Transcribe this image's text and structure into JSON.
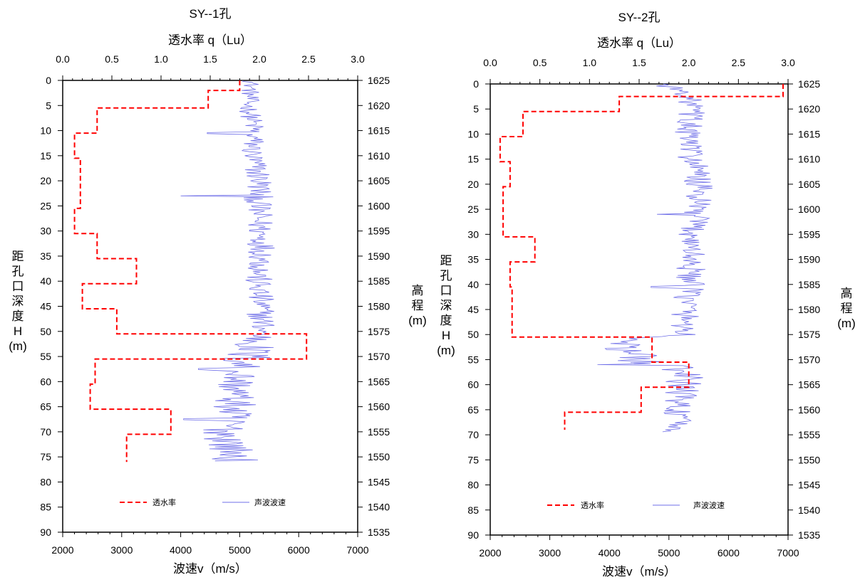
{
  "chart_data": [
    {
      "type": "line",
      "title": "SY--1孔",
      "top_axis_label": "透水率 q（Lu）",
      "bottom_axis_label": "波速v（m/s）",
      "left_axis_label": [
        "距",
        "孔",
        "口",
        "深",
        "度",
        "H",
        "(m)"
      ],
      "right_axis_label": [
        "高",
        "程",
        "(m)"
      ],
      "top_ticks": [
        "0.0",
        "0.5",
        "1.0",
        "1.5",
        "2.0",
        "2.5",
        "3.0"
      ],
      "bottom_ticks": [
        "2000",
        "3000",
        "4000",
        "5000",
        "6000",
        "7000"
      ],
      "left_ticks": [
        "0",
        "5",
        "10",
        "15",
        "20",
        "25",
        "30",
        "35",
        "40",
        "45",
        "50",
        "55",
        "60",
        "65",
        "70",
        "75",
        "80",
        "85",
        "90"
      ],
      "right_ticks": [
        "1625",
        "1620",
        "1615",
        "1610",
        "1605",
        "1600",
        "1595",
        "1590",
        "1585",
        "1580",
        "1575",
        "1570",
        "1565",
        "1560",
        "1555",
        "1550",
        "1545",
        "1540",
        "1535"
      ],
      "depth_range": [
        0,
        90
      ],
      "q_range": [
        0,
        3
      ],
      "v_range": [
        2000,
        7000
      ],
      "legend": [
        "透水率",
        "声波波速"
      ],
      "colors": {
        "permeability": "#ff0000",
        "velocity": "#6f6fe8"
      },
      "series": [
        {
          "name": "透水率",
          "points": [
            [
              1.8,
              0
            ],
            [
              1.8,
              2
            ],
            [
              1.48,
              2
            ],
            [
              1.48,
              5.5
            ],
            [
              0.35,
              5.5
            ],
            [
              0.35,
              10.5
            ],
            [
              0.12,
              10.5
            ],
            [
              0.12,
              15.5
            ],
            [
              0.18,
              15.5
            ],
            [
              0.18,
              25.5
            ],
            [
              0.12,
              25.5
            ],
            [
              0.12,
              30.5
            ],
            [
              0.35,
              30.5
            ],
            [
              0.35,
              35.5
            ],
            [
              0.75,
              35.5
            ],
            [
              0.75,
              40.5
            ],
            [
              0.2,
              40.5
            ],
            [
              0.2,
              45.5
            ],
            [
              0.55,
              45.5
            ],
            [
              0.55,
              50.5
            ],
            [
              2.48,
              50.5
            ],
            [
              2.48,
              55.5
            ],
            [
              0.33,
              55.5
            ],
            [
              0.33,
              60.5
            ],
            [
              0.28,
              60.5
            ],
            [
              0.28,
              65.5
            ],
            [
              1.1,
              65.5
            ],
            [
              1.1,
              70.5
            ],
            [
              0.65,
              70.5
            ],
            [
              0.65,
              76
            ]
          ]
        },
        {
          "name": "声波波速",
          "v_mean": [
            [
              0,
              5200
            ],
            [
              5,
              5150
            ],
            [
              10,
              5250
            ],
            [
              15,
              5200
            ],
            [
              20,
              5350
            ],
            [
              25,
              5300
            ],
            [
              30,
              5350
            ],
            [
              35,
              5400
            ],
            [
              40,
              5300
            ],
            [
              45,
              5350
            ],
            [
              50,
              5400
            ],
            [
              55,
              5100
            ],
            [
              60,
              4950
            ],
            [
              65,
              4900
            ],
            [
              70,
              4750
            ],
            [
              75,
              4900
            ],
            [
              76,
              4950
            ]
          ],
          "amplitude": [
            [
              0,
              150
            ],
            [
              20,
              250
            ],
            [
              50,
              250
            ],
            [
              55,
              500
            ],
            [
              60,
              350
            ],
            [
              70,
              400
            ],
            [
              76,
              400
            ]
          ],
          "spikes": [
            [
              10.5,
              4450
            ],
            [
              23,
              4000
            ],
            [
              57.5,
              4300
            ],
            [
              67.5,
              4050
            ]
          ],
          "depth_range": [
            0,
            76
          ]
        }
      ]
    },
    {
      "type": "line",
      "title": "SY--2孔",
      "top_axis_label": "透水率 q（Lu）",
      "bottom_axis_label": "波速v（m/s）",
      "left_axis_label": [
        "距",
        "孔",
        "口",
        "深",
        "度",
        "H",
        "(m)"
      ],
      "right_axis_label": [
        "高",
        "程",
        "(m)"
      ],
      "top_ticks": [
        "0.0",
        "0.5",
        "1.0",
        "1.5",
        "2.0",
        "2.5",
        "3.0"
      ],
      "bottom_ticks": [
        "2000",
        "3000",
        "4000",
        "5000",
        "6000",
        "7000"
      ],
      "left_ticks": [
        "0",
        "5",
        "10",
        "15",
        "20",
        "25",
        "30",
        "35",
        "40",
        "45",
        "50",
        "55",
        "60",
        "65",
        "70",
        "75",
        "80",
        "85",
        "90"
      ],
      "right_ticks": [
        "1625",
        "1620",
        "1615",
        "1610",
        "1605",
        "1600",
        "1595",
        "1590",
        "1585",
        "1580",
        "1575",
        "1570",
        "1565",
        "1560",
        "1555",
        "1550",
        "1545",
        "1540",
        "1535"
      ],
      "depth_range": [
        0,
        90
      ],
      "q_range": [
        0,
        3
      ],
      "v_range": [
        2000,
        7000
      ],
      "legend": [
        "透水率",
        "声波波速"
      ],
      "colors": {
        "permeability": "#ff0000",
        "velocity": "#6f6fe8"
      },
      "series": [
        {
          "name": "透水率",
          "points": [
            [
              2.95,
              0
            ],
            [
              2.95,
              2.5
            ],
            [
              1.3,
              2.5
            ],
            [
              1.3,
              5.5
            ],
            [
              0.33,
              5.5
            ],
            [
              0.33,
              10.5
            ],
            [
              0.1,
              10.5
            ],
            [
              0.1,
              15.5
            ],
            [
              0.2,
              15.5
            ],
            [
              0.2,
              20.5
            ],
            [
              0.13,
              20.5
            ],
            [
              0.13,
              30.5
            ],
            [
              0.45,
              30.5
            ],
            [
              0.45,
              35.5
            ],
            [
              0.2,
              35.5
            ],
            [
              0.2,
              40.5
            ],
            [
              0.22,
              40.5
            ],
            [
              0.22,
              50.5
            ],
            [
              1.63,
              50.5
            ],
            [
              1.63,
              55.5
            ],
            [
              2.0,
              55.5
            ],
            [
              2.0,
              60.5
            ],
            [
              1.52,
              60.5
            ],
            [
              1.52,
              65.5
            ],
            [
              0.75,
              65.5
            ],
            [
              0.75,
              69
            ]
          ]
        },
        {
          "name": "声波波速",
          "v_mean": [
            [
              0,
              4900
            ],
            [
              2,
              5300
            ],
            [
              5,
              5400
            ],
            [
              10,
              5300
            ],
            [
              20,
              5500
            ],
            [
              30,
              5400
            ],
            [
              40,
              5350
            ],
            [
              50,
              5250
            ],
            [
              51,
              4300
            ],
            [
              53,
              4200
            ],
            [
              55,
              4500
            ],
            [
              57,
              5200
            ],
            [
              60,
              5250
            ],
            [
              65,
              5150
            ],
            [
              69,
              5100
            ]
          ],
          "amplitude": [
            [
              0,
              200
            ],
            [
              10,
              250
            ],
            [
              50,
              250
            ],
            [
              51,
              200
            ],
            [
              55,
              500
            ],
            [
              60,
              300
            ],
            [
              69,
              250
            ]
          ],
          "spikes": [
            [
              26,
              4800
            ],
            [
              40.5,
              4700
            ],
            [
              56,
              3800
            ]
          ],
          "depth_range": [
            0,
            69.5
          ]
        }
      ]
    }
  ]
}
